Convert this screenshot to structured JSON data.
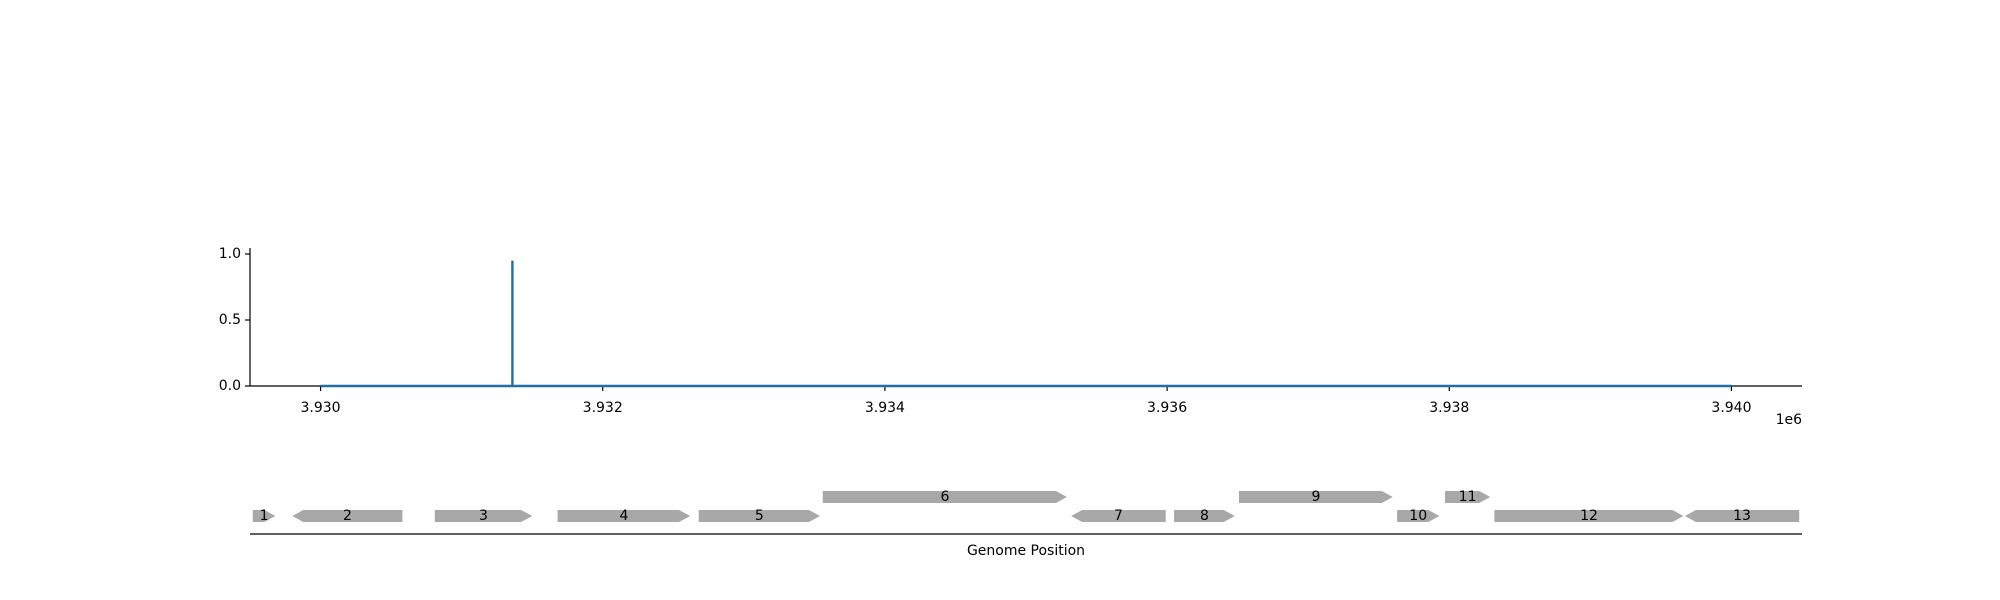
{
  "chart_data": [
    {
      "type": "line",
      "title": "",
      "xlabel": "",
      "ylabel": "",
      "x_offset_label": "1e6",
      "xlim": [
        3929500,
        3940500
      ],
      "ylim": [
        0,
        1.0
      ],
      "xticks": [
        3930000,
        3932000,
        3934000,
        3936000,
        3938000,
        3940000
      ],
      "xtick_labels": [
        "3.930",
        "3.932",
        "3.934",
        "3.936",
        "3.938",
        "3.940"
      ],
      "yticks": [
        0.0,
        0.5,
        1.0
      ],
      "ytick_labels": [
        "0.0",
        "0.5",
        "1.0"
      ],
      "grid": false,
      "color": "#1f6fa8",
      "series": [
        {
          "x": [
            3930000,
            3931360,
            3931360,
            3931360,
            3940000
          ],
          "y": [
            0,
            0,
            0.95,
            0,
            0
          ]
        }
      ]
    },
    {
      "type": "gene-track",
      "xlabel": "Genome Position",
      "xlim": [
        3929500,
        3940500
      ],
      "color": "#a8a8a8",
      "genes": [
        {
          "label": "1",
          "start": 3929520,
          "end": 3929680,
          "strand": "+",
          "row": 0
        },
        {
          "label": "2",
          "start": 3929800,
          "end": 3930580,
          "strand": "-",
          "row": 0
        },
        {
          "label": "3",
          "start": 3930810,
          "end": 3931500,
          "strand": "+",
          "row": 0
        },
        {
          "label": "4",
          "start": 3931680,
          "end": 3932620,
          "strand": "+",
          "row": 0
        },
        {
          "label": "5",
          "start": 3932680,
          "end": 3933540,
          "strand": "+",
          "row": 0
        },
        {
          "label": "6",
          "start": 3933560,
          "end": 3935290,
          "strand": "+",
          "row": 1
        },
        {
          "label": "7",
          "start": 3935320,
          "end": 3935990,
          "strand": "-",
          "row": 0
        },
        {
          "label": "8",
          "start": 3936050,
          "end": 3936480,
          "strand": "+",
          "row": 0
        },
        {
          "label": "9",
          "start": 3936510,
          "end": 3937600,
          "strand": "+",
          "row": 1
        },
        {
          "label": "10",
          "start": 3937630,
          "end": 3937930,
          "strand": "+",
          "row": 0
        },
        {
          "label": "11",
          "start": 3937970,
          "end": 3938290,
          "strand": "+",
          "row": 1
        },
        {
          "label": "12",
          "start": 3938320,
          "end": 3939660,
          "strand": "+",
          "row": 0
        },
        {
          "label": "13",
          "start": 3939670,
          "end": 3940480,
          "strand": "-",
          "row": 0
        }
      ]
    }
  ]
}
